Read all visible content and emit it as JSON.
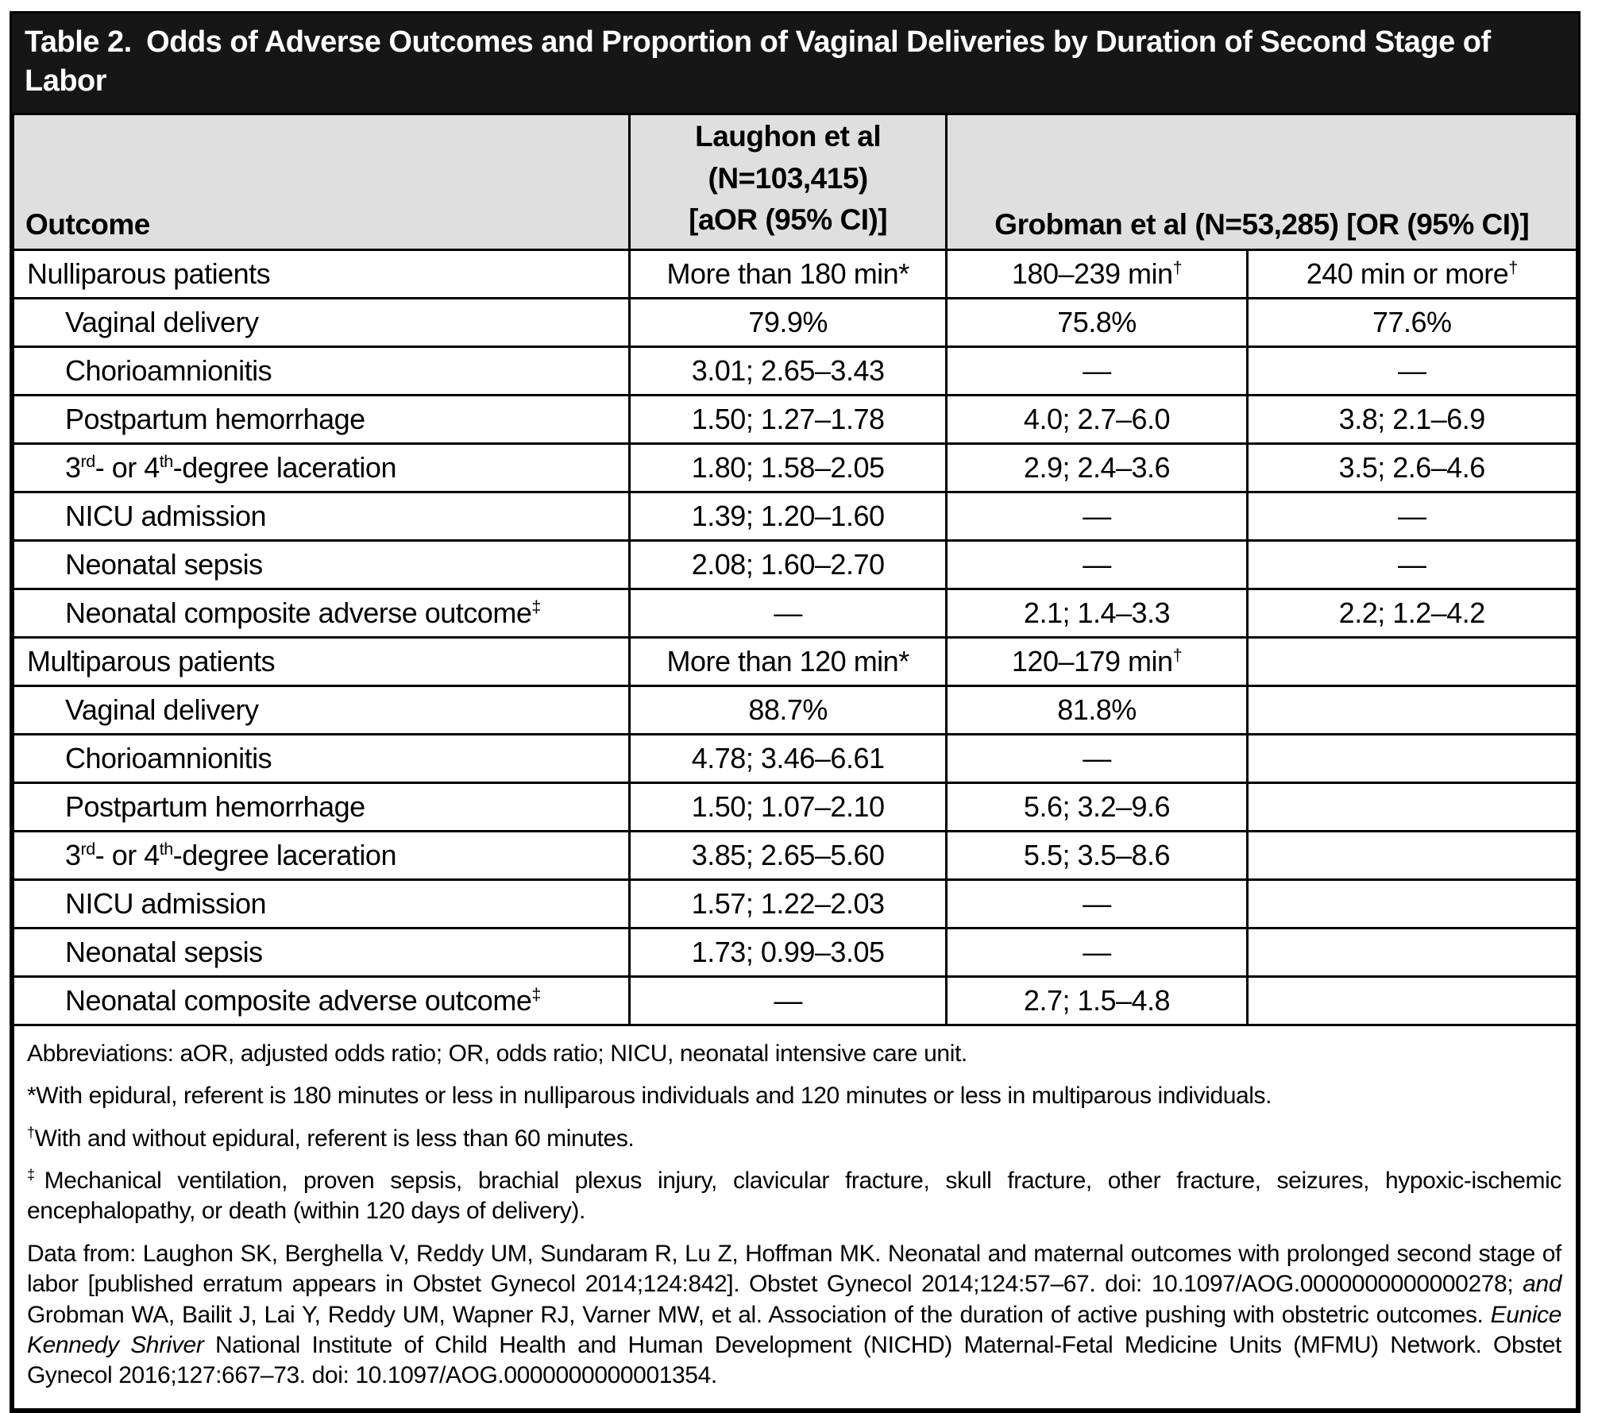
{
  "colors": {
    "title_bar_bg": "#161616",
    "title_text": "#ffffff",
    "header_bg": "#dfdfdf",
    "border": "#000000"
  },
  "title": "Table 2. Odds of Adverse Outcomes and Proportion of Vaginal Deliveries by Duration of Second Stage of Labor",
  "header": {
    "outcome": "Outcome",
    "laughon_lines": [
      "Laughon et al",
      "(N=103,415)",
      "[aOR (95% CI)]"
    ],
    "grobman": "Grobman et al (N=53,285) [OR (95% CI)]"
  },
  "table": {
    "rows": [
      {
        "type": "section",
        "label": [
          {
            "t": "Nulliparous patients"
          }
        ],
        "cells": [
          [
            {
              "t": "More than 180 min*"
            }
          ],
          [
            {
              "t": "180–239 min"
            },
            {
              "t": "†",
              "sup": true
            }
          ],
          [
            {
              "t": "240 min or more"
            },
            {
              "t": "†",
              "sup": true
            }
          ]
        ]
      },
      {
        "type": "item",
        "label": [
          {
            "t": "Vaginal delivery"
          }
        ],
        "cells": [
          [
            {
              "t": "79.9%"
            }
          ],
          [
            {
              "t": "75.8%"
            }
          ],
          [
            {
              "t": "77.6%"
            }
          ]
        ]
      },
      {
        "type": "item",
        "label": [
          {
            "t": "Chorioamnionitis"
          }
        ],
        "cells": [
          [
            {
              "t": "3.01; 2.65–3.43"
            }
          ],
          [
            {
              "t": "—"
            }
          ],
          [
            {
              "t": "—"
            }
          ]
        ]
      },
      {
        "type": "item",
        "label": [
          {
            "t": "Postpartum hemorrhage"
          }
        ],
        "cells": [
          [
            {
              "t": "1.50; 1.27–1.78"
            }
          ],
          [
            {
              "t": "4.0; 2.7–6.0"
            }
          ],
          [
            {
              "t": "3.8; 2.1–6.9"
            }
          ]
        ]
      },
      {
        "type": "item",
        "label": [
          {
            "t": "3"
          },
          {
            "t": "rd",
            "sup": true
          },
          {
            "t": "- or 4"
          },
          {
            "t": "th",
            "sup": true
          },
          {
            "t": "-degree laceration"
          }
        ],
        "cells": [
          [
            {
              "t": "1.80; 1.58–2.05"
            }
          ],
          [
            {
              "t": "2.9; 2.4–3.6"
            }
          ],
          [
            {
              "t": "3.5; 2.6–4.6"
            }
          ]
        ]
      },
      {
        "type": "item",
        "label": [
          {
            "t": "NICU admission"
          }
        ],
        "cells": [
          [
            {
              "t": "1.39; 1.20–1.60"
            }
          ],
          [
            {
              "t": "—"
            }
          ],
          [
            {
              "t": "—"
            }
          ]
        ]
      },
      {
        "type": "item",
        "label": [
          {
            "t": "Neonatal sepsis"
          }
        ],
        "cells": [
          [
            {
              "t": "2.08; 1.60–2.70"
            }
          ],
          [
            {
              "t": "—"
            }
          ],
          [
            {
              "t": "—"
            }
          ]
        ]
      },
      {
        "type": "item",
        "label": [
          {
            "t": "Neonatal composite adverse outcome"
          },
          {
            "t": "‡",
            "sup": true
          }
        ],
        "cells": [
          [
            {
              "t": "—"
            }
          ],
          [
            {
              "t": "2.1; 1.4–3.3"
            }
          ],
          [
            {
              "t": "2.2; 1.2–4.2"
            }
          ]
        ]
      },
      {
        "type": "section",
        "label": [
          {
            "t": "Multiparous patients"
          }
        ],
        "cells": [
          [
            {
              "t": "More than 120 min*"
            }
          ],
          [
            {
              "t": "120–179 min"
            },
            {
              "t": "†",
              "sup": true
            }
          ],
          []
        ]
      },
      {
        "type": "item",
        "label": [
          {
            "t": "Vaginal delivery"
          }
        ],
        "cells": [
          [
            {
              "t": "88.7%"
            }
          ],
          [
            {
              "t": "81.8%"
            }
          ],
          []
        ]
      },
      {
        "type": "item",
        "label": [
          {
            "t": "Chorioamnionitis"
          }
        ],
        "cells": [
          [
            {
              "t": "4.78; 3.46–6.61"
            }
          ],
          [
            {
              "t": "—"
            }
          ],
          []
        ]
      },
      {
        "type": "item",
        "label": [
          {
            "t": "Postpartum hemorrhage"
          }
        ],
        "cells": [
          [
            {
              "t": "1.50; 1.07–2.10"
            }
          ],
          [
            {
              "t": "5.6; 3.2–9.6"
            }
          ],
          []
        ]
      },
      {
        "type": "item",
        "label": [
          {
            "t": "3"
          },
          {
            "t": "rd",
            "sup": true
          },
          {
            "t": "- or 4"
          },
          {
            "t": "th",
            "sup": true
          },
          {
            "t": "-degree laceration"
          }
        ],
        "cells": [
          [
            {
              "t": "3.85; 2.65–5.60"
            }
          ],
          [
            {
              "t": "5.5; 3.5–8.6"
            }
          ],
          []
        ]
      },
      {
        "type": "item",
        "label": [
          {
            "t": "NICU admission"
          }
        ],
        "cells": [
          [
            {
              "t": "1.57; 1.22–2.03"
            }
          ],
          [
            {
              "t": "—"
            }
          ],
          []
        ]
      },
      {
        "type": "item",
        "label": [
          {
            "t": "Neonatal sepsis"
          }
        ],
        "cells": [
          [
            {
              "t": "1.73; 0.99–3.05"
            }
          ],
          [
            {
              "t": "—"
            }
          ],
          []
        ]
      },
      {
        "type": "item",
        "label": [
          {
            "t": "Neonatal composite adverse outcome"
          },
          {
            "t": "‡",
            "sup": true
          }
        ],
        "cells": [
          [
            {
              "t": "—"
            }
          ],
          [
            {
              "t": "2.7; 1.5–4.8"
            }
          ],
          []
        ]
      }
    ]
  },
  "footnotes": {
    "abbreviations": [
      {
        "t": "Abbreviations: aOR, adjusted odds ratio; OR, odds ratio; NICU, neonatal intensive care unit."
      }
    ],
    "star": [
      {
        "t": "*With epidural, referent is 180 minutes or less in nulliparous individuals and 120 minutes or less in multiparous individuals."
      }
    ],
    "dagger": [
      {
        "t": "†",
        "sup": true
      },
      {
        "t": "With and without epidural, referent is less than 60 minutes."
      }
    ],
    "ddagger": [
      {
        "t": "‡",
        "sup": true
      },
      {
        "t": "Mechanical ventilation, proven sepsis, brachial plexus injury, clavicular fracture, skull fracture, other fracture, seizures, hypoxic-ischemic encephalopathy, or death (within 120 days of delivery)."
      }
    ],
    "data_from": [
      {
        "t": "Data from: Laughon SK, Berghella V, Reddy UM, Sundaram R, Lu Z, Hoffman MK. Neonatal and maternal outcomes with prolonged second stage of labor [published erratum appears in Obstet Gynecol 2014;124:842]. Obstet Gynecol 2014;124:57–67. doi: 10.1097/AOG.0000000000000278; "
      },
      {
        "t": "and",
        "i": true
      },
      {
        "t": " Grobman WA, Bailit J, Lai Y, Reddy UM, Wapner RJ, Varner MW, et al. Association of the duration of active pushing with obstetric outcomes. "
      },
      {
        "t": "Eunice Kennedy Shriver",
        "i": true
      },
      {
        "t": " National Institute of Child Health and Human Development (NICHD) Maternal-Fetal Medicine Units (MFMU) Network. Obstet Gynecol 2016;127:667–73. doi: 10.1097/AOG.0000000000001354."
      }
    ]
  }
}
